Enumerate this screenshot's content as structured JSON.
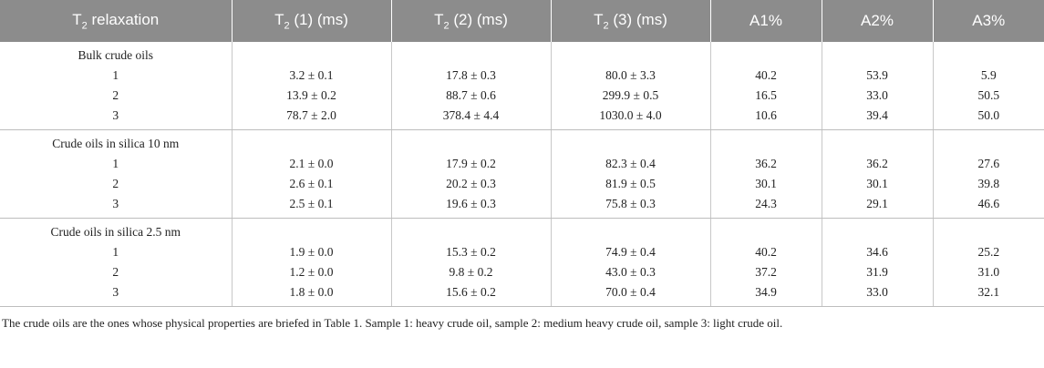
{
  "header": {
    "col1": "relaxation",
    "col2_suffix": "(1) (ms)",
    "col3_suffix": "(2) (ms)",
    "col4_suffix": "(3) (ms)",
    "t_letter": "T",
    "t_sub": "2",
    "col5": "A1%",
    "col6": "A2%",
    "col7": "A3%"
  },
  "groups": [
    {
      "title": "Bulk crude oils",
      "rows": [
        {
          "sample": "1",
          "t1": "3.2 ± 0.1",
          "t2": "17.8 ± 0.3",
          "t3": "80.0 ± 3.3",
          "a1": "40.2",
          "a2": "53.9",
          "a3": "5.9"
        },
        {
          "sample": "2",
          "t1": "13.9 ± 0.2",
          "t2": "88.7 ± 0.6",
          "t3": "299.9 ± 0.5",
          "a1": "16.5",
          "a2": "33.0",
          "a3": "50.5"
        },
        {
          "sample": "3",
          "t1": "78.7 ± 2.0",
          "t2": "378.4 ± 4.4",
          "t3": "1030.0 ± 4.0",
          "a1": "10.6",
          "a2": "39.4",
          "a3": "50.0"
        }
      ]
    },
    {
      "title": "Crude oils in silica 10 nm",
      "rows": [
        {
          "sample": "1",
          "t1": "2.1 ± 0.0",
          "t2": "17.9 ± 0.2",
          "t3": "82.3 ± 0.4",
          "a1": "36.2",
          "a2": "36.2",
          "a3": "27.6"
        },
        {
          "sample": "2",
          "t1": "2.6 ± 0.1",
          "t2": "20.2 ± 0.3",
          "t3": "81.9 ± 0.5",
          "a1": "30.1",
          "a2": "30.1",
          "a3": "39.8"
        },
        {
          "sample": "3",
          "t1": "2.5 ± 0.1",
          "t2": "19.6 ± 0.3",
          "t3": "75.8 ± 0.3",
          "a1": "24.3",
          "a2": "29.1",
          "a3": "46.6"
        }
      ]
    },
    {
      "title": "Crude oils in silica 2.5 nm",
      "rows": [
        {
          "sample": "1",
          "t1": "1.9 ± 0.0",
          "t2": "15.3 ± 0.2",
          "t3": "74.9 ± 0.4",
          "a1": "40.2",
          "a2": "34.6",
          "a3": "25.2"
        },
        {
          "sample": "2",
          "t1": "1.2 ± 0.0",
          "t2": "9.8 ± 0.2",
          "t3": "43.0 ± 0.3",
          "a1": "37.2",
          "a2": "31.9",
          "a3": "31.0"
        },
        {
          "sample": "3",
          "t1": "1.8 ± 0.0",
          "t2": "15.6 ± 0.2",
          "t3": "70.0 ± 0.4",
          "a1": "34.9",
          "a2": "33.0",
          "a3": "32.1"
        }
      ]
    }
  ],
  "footnote": "The crude oils are the ones whose physical properties are briefed in Table 1. Sample 1: heavy crude oil, sample 2: medium heavy crude oil, sample 3: light crude oil."
}
